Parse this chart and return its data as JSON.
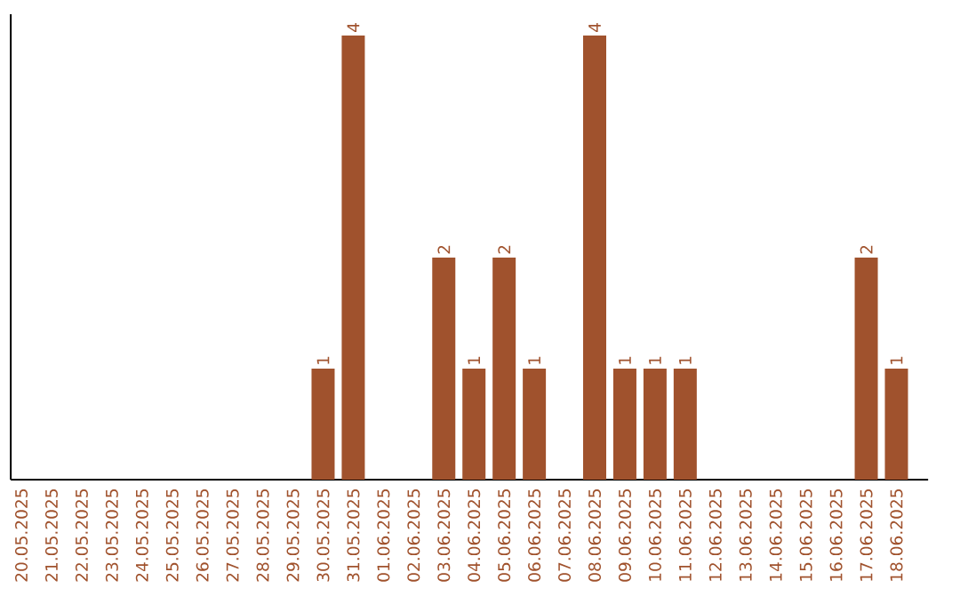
{
  "chart_data": {
    "type": "bar",
    "categories": [
      "20.05.2025",
      "21.05.2025",
      "22.05.2025",
      "23.05.2025",
      "24.05.2025",
      "25.05.2025",
      "26.05.2025",
      "27.05.2025",
      "28.05.2025",
      "29.05.2025",
      "30.05.2025",
      "31.05.2025",
      "01.06.2025",
      "02.06.2025",
      "03.06.2025",
      "04.06.2025",
      "05.06.2025",
      "06.06.2025",
      "07.06.2025",
      "08.06.2025",
      "09.06.2025",
      "10.06.2025",
      "11.06.2025",
      "12.06.2025",
      "13.06.2025",
      "14.06.2025",
      "15.06.2025",
      "16.06.2025",
      "17.06.2025",
      "18.06.2025"
    ],
    "values": [
      0,
      0,
      0,
      0,
      0,
      0,
      0,
      0,
      0,
      0,
      1,
      4,
      0,
      0,
      2,
      1,
      2,
      1,
      0,
      4,
      1,
      1,
      1,
      0,
      0,
      0,
      0,
      0,
      2,
      1
    ],
    "value_labels": [
      null,
      null,
      null,
      null,
      null,
      null,
      null,
      null,
      null,
      null,
      "1",
      "4",
      null,
      null,
      "2",
      "1",
      "2",
      "1",
      null,
      "4",
      "1",
      "1",
      "1",
      null,
      null,
      null,
      null,
      null,
      "2",
      "1"
    ],
    "color": "#a0522d",
    "tick_labels": "x",
    "grid": false
  }
}
